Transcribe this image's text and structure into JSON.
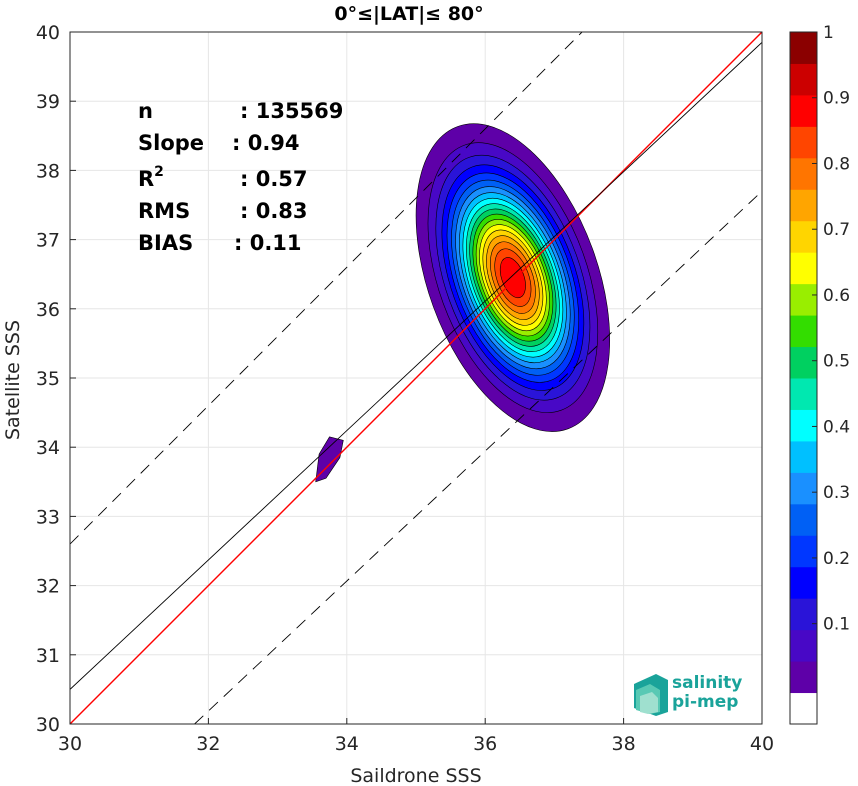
{
  "chart_data": {
    "type": "heatmap",
    "title": "0°≤|LAT|≤ 80°",
    "xlabel": "Saildrone SSS",
    "ylabel": "Satellite SSS",
    "xlim": [
      30,
      40
    ],
    "ylim": [
      30,
      40
    ],
    "xticks": [
      "30",
      "32",
      "34",
      "36",
      "38",
      "40"
    ],
    "yticks": [
      "30",
      "31",
      "32",
      "33",
      "34",
      "35",
      "36",
      "37",
      "38",
      "39",
      "40"
    ],
    "grid": true,
    "stats": [
      {
        "key": "n",
        "sep": ": ",
        "value": "135569"
      },
      {
        "key": "Slope",
        "sep": ": ",
        "value": "0.94"
      },
      {
        "key": "R",
        "sup": "2",
        "sep": ": ",
        "value": "0.57"
      },
      {
        "key": "RMS",
        "sep": ": ",
        "value": "0.83"
      },
      {
        "key": "BIAS",
        "sep": ": ",
        "value": "0.11"
      }
    ],
    "lines": [
      {
        "role": "one-to-one",
        "color": "#ff0000",
        "points": [
          [
            30,
            30
          ],
          [
            40,
            40
          ]
        ]
      },
      {
        "role": "regression",
        "color": "#000000",
        "points": [
          [
            30,
            30.5
          ],
          [
            40,
            39.85
          ]
        ]
      },
      {
        "role": "upper-bound",
        "color": "#000000",
        "dashed": true,
        "points": [
          [
            30,
            32.6
          ],
          [
            37.4,
            40
          ]
        ]
      },
      {
        "role": "lower-bound",
        "color": "#000000",
        "dashed": true,
        "points": [
          [
            31.8,
            30
          ],
          [
            40,
            37.7
          ]
        ]
      }
    ],
    "density_peak": {
      "x": 36.4,
      "y": 36.45,
      "sx": 0.5,
      "sy": 0.95,
      "rot": -0.35
    },
    "secondary_blob": [
      [
        33.55,
        33.5
      ],
      [
        33.6,
        33.9
      ],
      [
        33.75,
        34.15
      ],
      [
        33.95,
        34.1
      ],
      [
        33.9,
        33.85
      ],
      [
        33.7,
        33.55
      ]
    ],
    "colorbar": {
      "ticks": [
        "0.1",
        "0.2",
        "0.3",
        "0.4",
        "0.5",
        "0.6",
        "0.7",
        "0.8",
        "0.9",
        "1"
      ],
      "levels": [
        0.05,
        0.1,
        0.15,
        0.2,
        0.25,
        0.3,
        0.35,
        0.4,
        0.45,
        0.5,
        0.55,
        0.6,
        0.65,
        0.7,
        0.75,
        0.8,
        0.85,
        0.9,
        0.95
      ],
      "colors": [
        "#ffffff",
        "#5e00a8",
        "#4808c6",
        "#2a14d8",
        "#0000ff",
        "#0037ff",
        "#0060f5",
        "#1a90ff",
        "#00c0ff",
        "#00ffff",
        "#00e8b0",
        "#00d060",
        "#33dd00",
        "#99ee00",
        "#ffff00",
        "#ffd500",
        "#ffa500",
        "#ff7500",
        "#ff4500",
        "#ff0000",
        "#cc0000",
        "#8b0000"
      ]
    }
  },
  "logo": {
    "line1": "salinity",
    "line2": "pi-mep"
  }
}
